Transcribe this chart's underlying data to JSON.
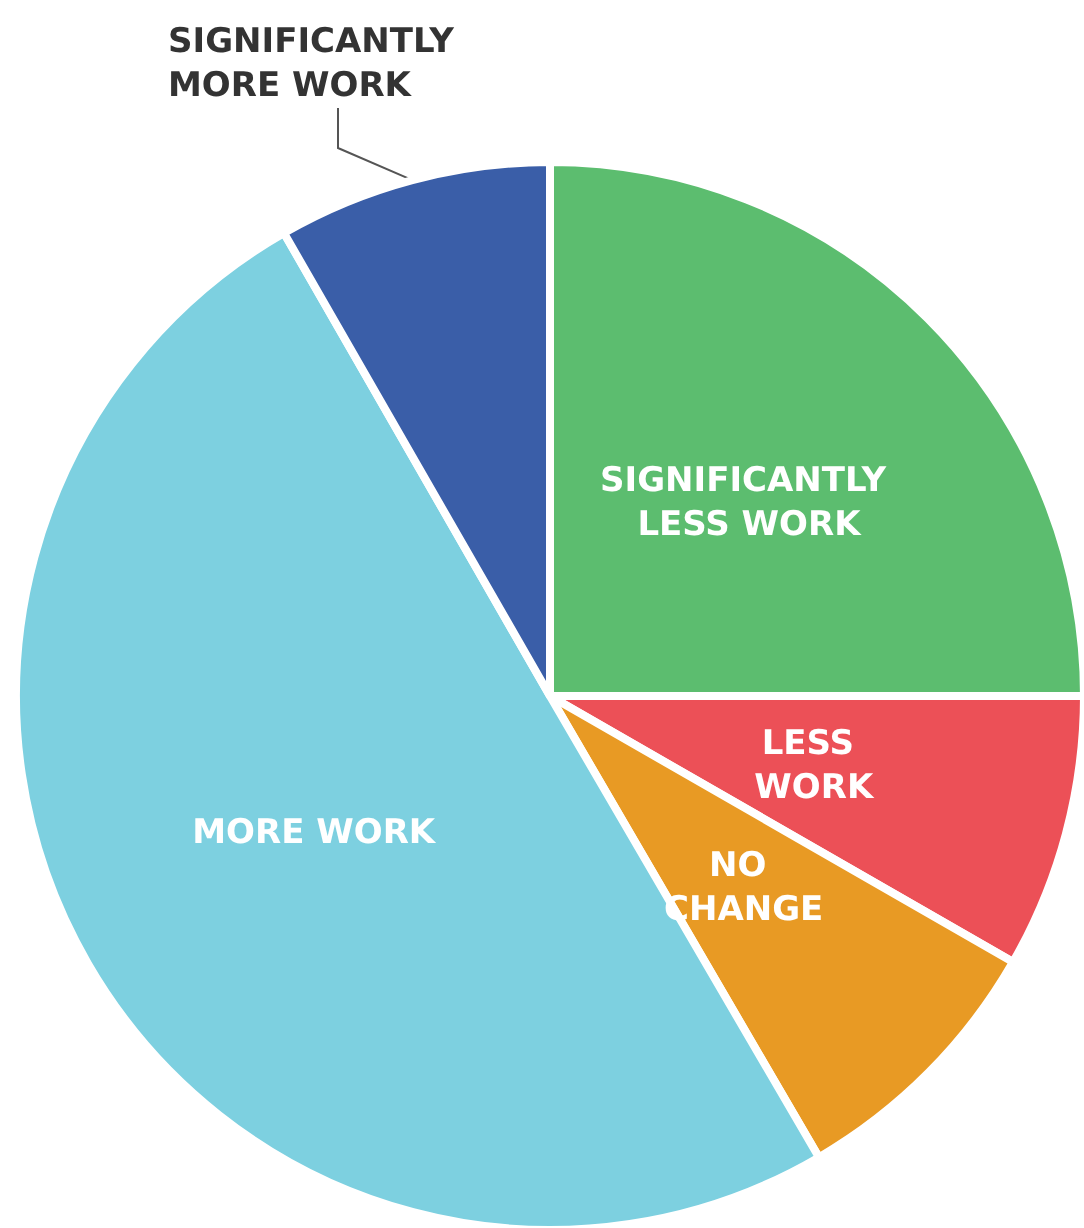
{
  "chart_data": {
    "type": "pie",
    "categories": [
      "SIGNIFICANTLY LESS WORK",
      "LESS WORK",
      "NO CHANGE",
      "MORE WORK",
      "SIGNIFICANTLY MORE WORK"
    ],
    "values": [
      25,
      8.3,
      8.3,
      50.1,
      8.3
    ],
    "colors": [
      "#5cbd6f",
      "#ec5057",
      "#e89a24",
      "#7dd0e0",
      "#3a5ea8"
    ]
  }
}
